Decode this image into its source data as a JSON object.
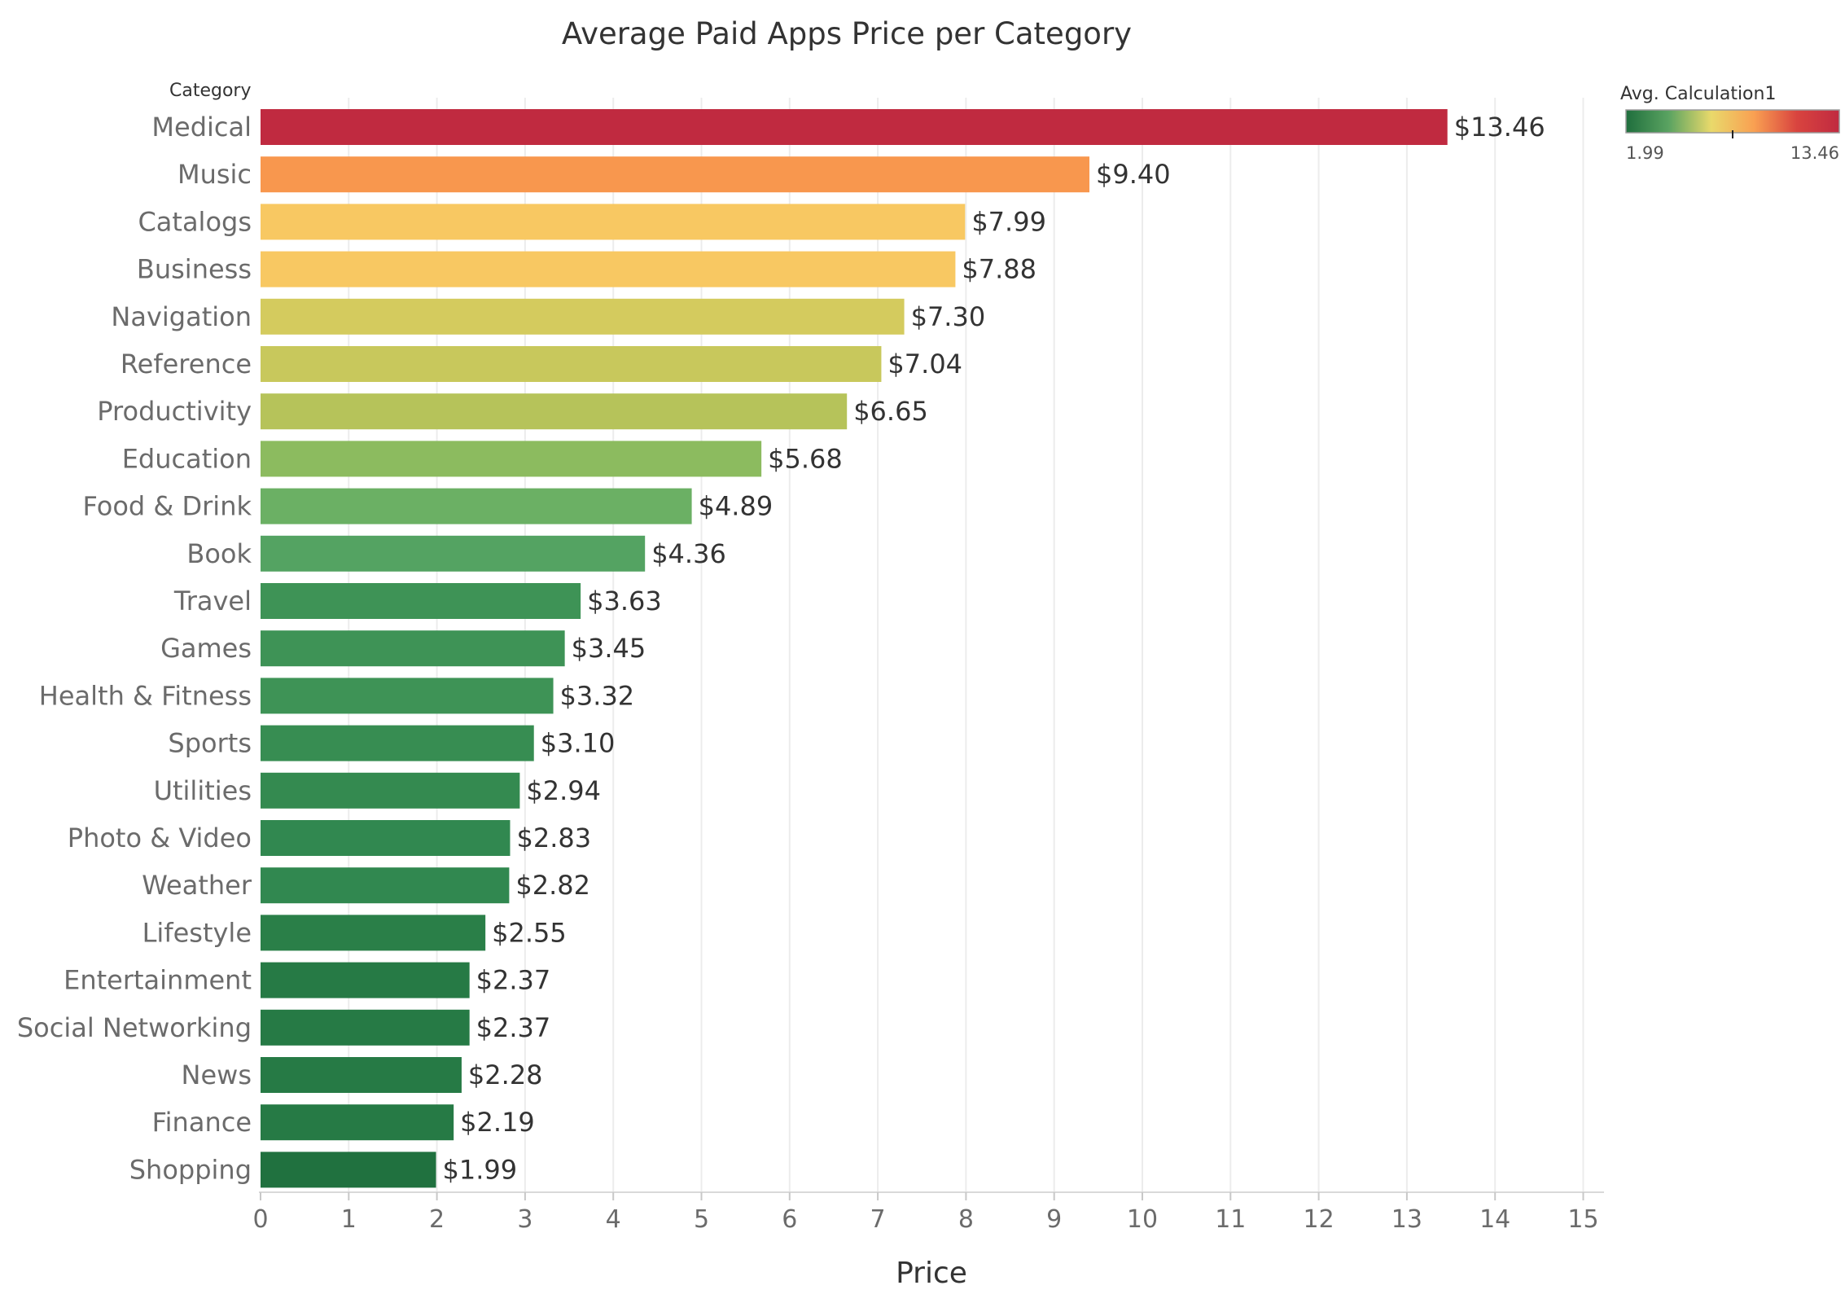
{
  "chart_data": {
    "type": "bar",
    "orientation": "horizontal",
    "title": "Average Paid Apps Price per Category",
    "category_header": "Category",
    "xlabel": "Price",
    "xlim": [
      0,
      15
    ],
    "xticks": [
      "0",
      "1",
      "2",
      "3",
      "4",
      "5",
      "6",
      "7",
      "8",
      "9",
      "10",
      "11",
      "12",
      "13",
      "14",
      "15"
    ],
    "grid": "vertical",
    "categories": [
      "Medical",
      "Music",
      "Catalogs",
      "Business",
      "Navigation",
      "Reference",
      "Productivity",
      "Education",
      "Food & Drink",
      "Book",
      "Travel",
      "Games",
      "Health & Fitness",
      "Sports",
      "Utilities",
      "Photo & Video",
      "Weather",
      "Lifestyle",
      "Entertainment",
      "Social Networking",
      "News",
      "Finance",
      "Shopping"
    ],
    "values": [
      13.46,
      9.4,
      7.99,
      7.88,
      7.3,
      7.04,
      6.65,
      5.68,
      4.89,
      4.36,
      3.63,
      3.45,
      3.32,
      3.1,
      2.94,
      2.83,
      2.82,
      2.55,
      2.37,
      2.37,
      2.28,
      2.19,
      1.99
    ],
    "value_labels": [
      "$13.46",
      "$9.40",
      "$7.99",
      "$7.88",
      "$7.30",
      "$7.04",
      "$6.65",
      "$5.68",
      "$4.89",
      "$4.36",
      "$3.63",
      "$3.45",
      "$3.32",
      "$3.10",
      "$2.94",
      "$2.83",
      "$2.82",
      "$2.55",
      "$2.37",
      "$2.37",
      "$2.28",
      "$2.19",
      "$1.99"
    ],
    "colors": [
      "#c02a40",
      "#f8974e",
      "#f8c862",
      "#f8c862",
      "#d4cb5e",
      "#c8c85c",
      "#b6c35a",
      "#8cbb5f",
      "#6bb064",
      "#54a362",
      "#3e9356",
      "#3e9356",
      "#3e9356",
      "#378d52",
      "#348a50",
      "#318850",
      "#318850",
      "#2a7f48",
      "#267a45",
      "#267a45",
      "#267a45",
      "#267a45",
      "#20713f"
    ],
    "legend": {
      "title": "Avg. Calculation1",
      "min_label": "1.99",
      "max_label": "13.46",
      "colors": [
        "#1f6e3d",
        "#5aa361",
        "#e9d96b",
        "#f9a052",
        "#d9443f",
        "#c02a40"
      ],
      "placement": "top-right"
    }
  }
}
